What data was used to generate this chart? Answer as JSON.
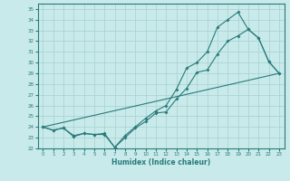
{
  "xlabel": "Humidex (Indice chaleur)",
  "xlim": [
    -0.5,
    23.5
  ],
  "ylim": [
    22,
    35.5
  ],
  "yticks": [
    22,
    23,
    24,
    25,
    26,
    27,
    28,
    29,
    30,
    31,
    32,
    33,
    34,
    35
  ],
  "xticks": [
    0,
    1,
    2,
    3,
    4,
    5,
    6,
    7,
    8,
    9,
    10,
    11,
    12,
    13,
    14,
    15,
    16,
    17,
    18,
    19,
    20,
    21,
    22,
    23
  ],
  "bg_color": "#c8eaea",
  "line_color": "#2a7a7a",
  "grid_color": "#a8d0d0",
  "line1_x": [
    0,
    1,
    2,
    3,
    4,
    5,
    6,
    7,
    8,
    9,
    10,
    11,
    12,
    13,
    14,
    15,
    16,
    17,
    18,
    19,
    20,
    21,
    22,
    23
  ],
  "line1_y": [
    24.0,
    23.7,
    23.9,
    23.1,
    23.4,
    23.3,
    23.3,
    22.1,
    23.0,
    23.9,
    24.5,
    25.3,
    25.4,
    26.6,
    27.6,
    29.1,
    29.3,
    30.8,
    32.0,
    32.5,
    33.1,
    32.3,
    30.1,
    29.0
  ],
  "line2_x": [
    0,
    23
  ],
  "line2_y": [
    24.0,
    29.0
  ],
  "line3_x": [
    0,
    1,
    2,
    3,
    4,
    5,
    6,
    7,
    8,
    9,
    10,
    11,
    12,
    13,
    14,
    15,
    16,
    17,
    18,
    19,
    20,
    21,
    22,
    23
  ],
  "line3_y": [
    24.0,
    23.7,
    23.9,
    23.2,
    23.4,
    23.3,
    23.4,
    22.1,
    23.2,
    24.0,
    24.8,
    25.5,
    26.0,
    27.5,
    29.5,
    30.0,
    31.0,
    33.3,
    34.0,
    34.7,
    33.1,
    32.3,
    30.1,
    29.0
  ]
}
